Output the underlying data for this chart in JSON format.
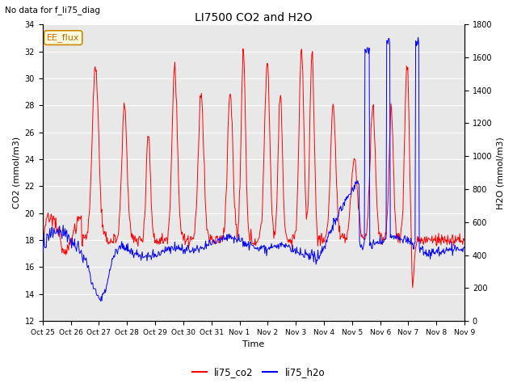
{
  "title": "LI7500 CO2 and H2O",
  "no_data_text": "No data for f_li75_diag",
  "xlabel": "Time",
  "ylabel_left": "CO2 (mmol/m3)",
  "ylabel_right": "H2O (mmol/m3)",
  "ylim_left": [
    12,
    34
  ],
  "ylim_right": [
    0,
    1800
  ],
  "legend_box_label": "EE_flux",
  "co2_color": "#ff0000",
  "h2o_color": "#0000ff",
  "bg_color": "#ffffff",
  "plot_bg_color": "#e8e8e8",
  "grid_color": "#ffffff",
  "xtick_labels": [
    "Oct 25",
    "Oct 26",
    "Oct 27",
    "Oct 28",
    "Oct 29",
    "Oct 30",
    "Oct 31",
    "Nov 1",
    "Nov 2",
    "Nov 3",
    "Nov 4",
    "Nov 5",
    "Nov 6",
    "Nov 7",
    "Nov 8",
    "Nov 9"
  ],
  "yticks_left": [
    12,
    14,
    16,
    18,
    20,
    22,
    24,
    26,
    28,
    30,
    32,
    34
  ],
  "yticks_right": [
    0,
    200,
    400,
    600,
    800,
    1000,
    1200,
    1400,
    1600,
    1800
  ],
  "num_points": 700
}
